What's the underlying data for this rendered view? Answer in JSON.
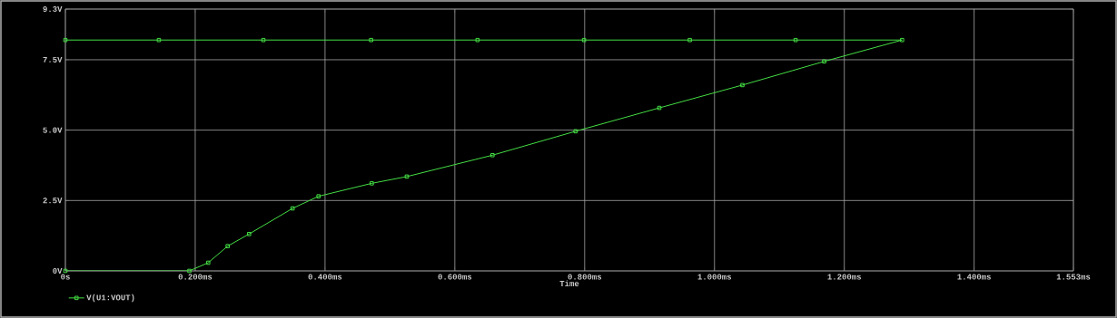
{
  "chart_data": {
    "type": "line",
    "xlabel": "Time",
    "x": [
      0,
      0.191,
      0.22,
      0.25,
      0.283,
      0.35,
      0.39,
      0.472,
      0.526,
      0.658,
      0.786,
      0.915,
      1.043,
      1.169,
      1.289,
      1.125,
      0.962,
      0.799,
      0.635,
      0.471,
      0.305,
      0.144,
      0
    ],
    "series": [
      {
        "name": "V(U1:VOUT)",
        "color": "#44dd44",
        "values": [
          0,
          0,
          0.29,
          0.88,
          1.31,
          2.22,
          2.65,
          3.11,
          3.35,
          4.11,
          4.96,
          5.79,
          6.6,
          7.44,
          8.2,
          8.2,
          8.2,
          8.2,
          8.2,
          8.2,
          8.2,
          8.2,
          8.2
        ]
      }
    ],
    "xlim": [
      0,
      1.553
    ],
    "ylim": [
      0,
      9.3
    ],
    "xticks": [
      {
        "value": 0,
        "label": "0s"
      },
      {
        "value": 0.2,
        "label": "0.200ms"
      },
      {
        "value": 0.4,
        "label": "0.400ms"
      },
      {
        "value": 0.6,
        "label": "0.600ms"
      },
      {
        "value": 0.8,
        "label": "0.800ms"
      },
      {
        "value": 1.0,
        "label": "1.000ms"
      },
      {
        "value": 1.2,
        "label": "1.200ms"
      },
      {
        "value": 1.4,
        "label": "1.400ms"
      },
      {
        "value": 1.553,
        "label": "1.553ms"
      }
    ],
    "yticks": [
      {
        "value": 0,
        "label": "0V"
      },
      {
        "value": 2.5,
        "label": "2.5V"
      },
      {
        "value": 5,
        "label": "5.0V"
      },
      {
        "value": 7.5,
        "label": "7.5V"
      },
      {
        "value": 9.3,
        "label": "9.3V"
      }
    ],
    "grid": true,
    "legend": "bottom left",
    "marker": "square",
    "line_style": "solid"
  }
}
